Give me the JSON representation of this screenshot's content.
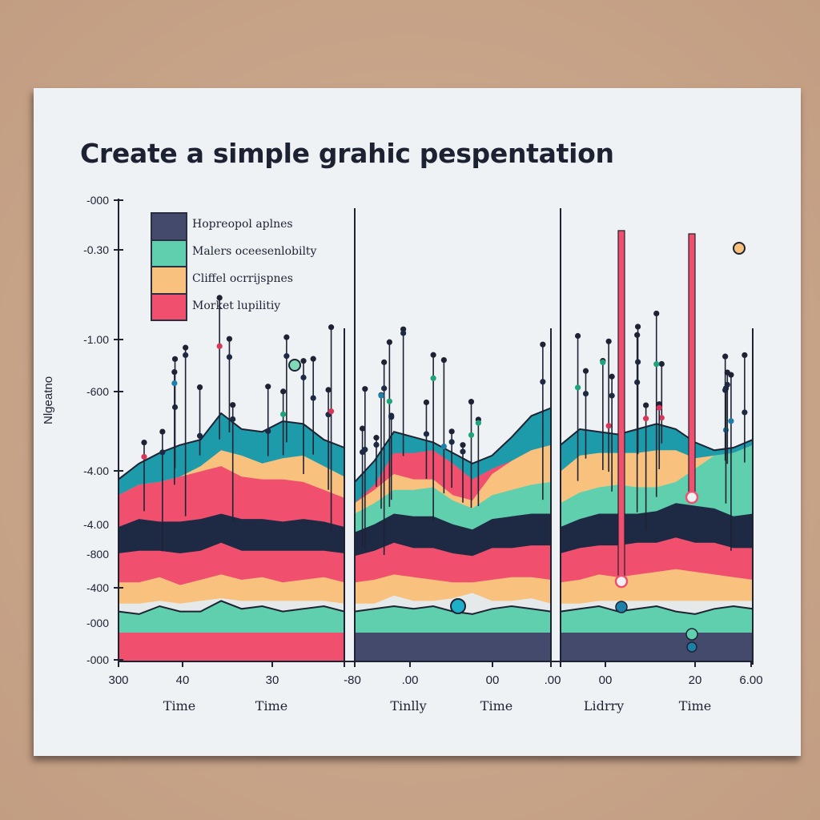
{
  "chart_data": {
    "type": "area",
    "title": "Create a simple grahic pespentation",
    "ylabel": "Nlgeatno",
    "xlabel_groups": [
      "Time",
      "Time",
      "Tinlly",
      "Time",
      "Lidrry",
      "Time"
    ],
    "y_tick_labels": [
      "-000",
      "-0.30",
      "-1.00",
      "-600",
      "-4.00",
      "-4.00",
      "-800",
      "-400",
      "-000",
      "-000"
    ],
    "x_tick_labels": [
      "300",
      "40",
      "30",
      "-80",
      ".00",
      "00",
      ".00",
      "00",
      "20",
      "6.00"
    ],
    "grid": false,
    "legend_position": "top-left",
    "legend": [
      {
        "name": "Hopreopol aplnes",
        "color": "#434a6b"
      },
      {
        "name": "Malers oceesenlobilty",
        "color": "#5fcfad"
      },
      {
        "name": "Cliffel ocrrijspnes",
        "color": "#f8c27e"
      },
      {
        "name": "Morket lupilitiy",
        "color": "#f0506e"
      }
    ],
    "panels": [
      {
        "name": "panel-1",
        "x": [
          0,
          1,
          2,
          3,
          4,
          5,
          6,
          7,
          8,
          9,
          10,
          11
        ],
        "base_color": "#f0506e",
        "layers": [
          {
            "name": "green",
            "color": "#5fcfad",
            "values": [
              8,
              7,
              10,
              8,
              8,
              12,
              9,
              10,
              8,
              9,
              10,
              8
            ]
          },
          {
            "name": "gap",
            "color": "#e6e9ea",
            "values": [
              3,
              4,
              2,
              3,
              4,
              1,
              3,
              2,
              4,
              3,
              2,
              3
            ]
          },
          {
            "name": "orange",
            "color": "#f8c27e",
            "values": [
              8,
              8,
              9,
              7,
              8,
              9,
              8,
              9,
              7,
              8,
              9,
              8
            ]
          },
          {
            "name": "pink",
            "color": "#f0506e",
            "values": [
              11,
              12,
              10,
              12,
              11,
              12,
              11,
              10,
              12,
              11,
              10,
              11
            ]
          },
          {
            "name": "navy",
            "color": "#1e2a44",
            "values": [
              10,
              12,
              11,
              12,
              12,
              11,
              12,
              12,
              11,
              12,
              11,
              10
            ]
          },
          {
            "name": "pink2",
            "color": "#f0506e",
            "values": [
              12,
              13,
              15,
              17,
              18,
              18,
              16,
              15,
              16,
              14,
              12,
              11
            ]
          },
          {
            "name": "orange2",
            "color": "#f8c27e",
            "values": [
              0,
              0,
              0,
              0,
              2,
              6,
              8,
              6,
              8,
              10,
              9,
              8
            ]
          },
          {
            "name": "teal",
            "color": "#1e9bab",
            "values": [
              6,
              8,
              11,
              12,
              10,
              14,
              10,
              12,
              14,
              12,
              10,
              11
            ]
          }
        ]
      },
      {
        "name": "panel-2",
        "x": [
          0,
          1,
          2,
          3,
          4,
          5,
          6,
          7,
          8,
          9,
          10
        ],
        "base_color": "#434a6b",
        "layers": [
          {
            "name": "green",
            "color": "#5fcfad",
            "values": [
              8,
              9,
              10,
              9,
              10,
              8,
              7,
              9,
              10,
              9,
              8
            ]
          },
          {
            "name": "gap",
            "color": "#e6e9ea",
            "values": [
              3,
              2,
              4,
              3,
              2,
              5,
              8,
              3,
              2,
              4,
              3
            ]
          },
          {
            "name": "orange",
            "color": "#f8c27e",
            "values": [
              8,
              9,
              8,
              9,
              8,
              6,
              4,
              8,
              9,
              8,
              9
            ]
          },
          {
            "name": "pink",
            "color": "#f0506e",
            "values": [
              10,
              11,
              12,
              11,
              12,
              11,
              10,
              12,
              11,
              12,
              13
            ]
          },
          {
            "name": "navy",
            "color": "#1e2a44",
            "values": [
              9,
              10,
              11,
              12,
              12,
              11,
              10,
              11,
              12,
              12,
              12
            ]
          },
          {
            "name": "green2",
            "color": "#5fcfad",
            "values": [
              7,
              8,
              9,
              10,
              11,
              9,
              8,
              9,
              10,
              11,
              12
            ]
          },
          {
            "name": "orange2",
            "color": "#f8c27e",
            "values": [
              4,
              5,
              6,
              4,
              3,
              2,
              3,
              8,
              11,
              13,
              14
            ]
          },
          {
            "name": "pink2",
            "color": "#f0506e",
            "values": [
              0,
              2,
              8,
              10,
              11,
              12,
              8,
              2,
              0,
              0,
              0
            ]
          },
          {
            "name": "teal",
            "color": "#1e9bab",
            "values": [
              8,
              9,
              8,
              6,
              3,
              4,
              6,
              5,
              9,
              13,
              14
            ]
          }
        ]
      },
      {
        "name": "panel-3",
        "x": [
          0,
          1,
          2,
          3,
          4,
          5,
          6,
          7,
          8,
          9,
          10
        ],
        "base_color": "#434a6b",
        "layers": [
          {
            "name": "green",
            "color": "#5fcfad",
            "values": [
              8,
              9,
              10,
              8,
              9,
              10,
              8,
              7,
              9,
              10,
              9
            ]
          },
          {
            "name": "gap",
            "color": "#e6e9ea",
            "values": [
              3,
              2,
              2,
              4,
              3,
              2,
              4,
              5,
              3,
              2,
              3
            ]
          },
          {
            "name": "orange",
            "color": "#f8c27e",
            "values": [
              8,
              9,
              10,
              9,
              10,
              11,
              12,
              11,
              10,
              9,
              8
            ]
          },
          {
            "name": "pink",
            "color": "#f0506e",
            "values": [
              11,
              12,
              11,
              12,
              12,
              11,
              12,
              11,
              12,
              11,
              12
            ]
          },
          {
            "name": "navy",
            "color": "#1e2a44",
            "values": [
              10,
              11,
              12,
              12,
              11,
              12,
              13,
              14,
              13,
              12,
              13
            ]
          },
          {
            "name": "green2",
            "color": "#5fcfad",
            "values": [
              9,
              10,
              10,
              11,
              10,
              9,
              8,
              14,
              20,
              24,
              26
            ]
          },
          {
            "name": "orange2",
            "color": "#f8c27e",
            "values": [
              12,
              14,
              13,
              12,
              13,
              14,
              12,
              4,
              0,
              0,
              0
            ]
          },
          {
            "name": "teal",
            "color": "#1e9bab",
            "values": [
              10,
              10,
              8,
              7,
              9,
              10,
              8,
              6,
              2,
              2,
              2
            ]
          }
        ]
      }
    ]
  }
}
